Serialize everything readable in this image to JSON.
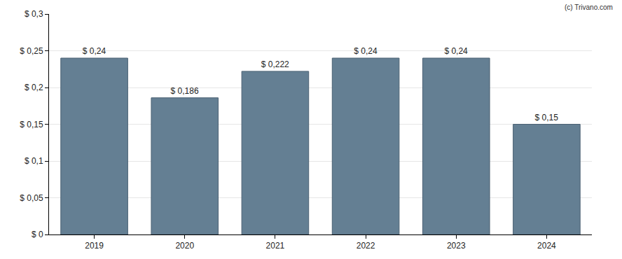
{
  "chart_data": {
    "type": "bar",
    "annotation": "(c) Trivano.com",
    "categories": [
      "2019",
      "2020",
      "2021",
      "2022",
      "2023",
      "2024"
    ],
    "values": [
      0.24,
      0.186,
      0.222,
      0.24,
      0.24,
      0.15
    ],
    "value_labels": [
      "$ 0,24",
      "$ 0,186",
      "$ 0,222",
      "$ 0,24",
      "$ 0,24",
      "$ 0,15"
    ],
    "data_labels": true,
    "color": "#647f93",
    "ylim": [
      0,
      0.3
    ],
    "yticks": [
      {
        "value": 0,
        "label": "$ 0"
      },
      {
        "value": 0.05,
        "label": "$ 0,05"
      },
      {
        "value": 0.1,
        "label": "$ 0,1"
      },
      {
        "value": 0.15,
        "label": "$ 0,15"
      },
      {
        "value": 0.2,
        "label": "$ 0,2"
      },
      {
        "value": 0.25,
        "label": "$ 0,25"
      },
      {
        "value": 0.3,
        "label": "$ 0,3"
      }
    ],
    "grid": true
  }
}
